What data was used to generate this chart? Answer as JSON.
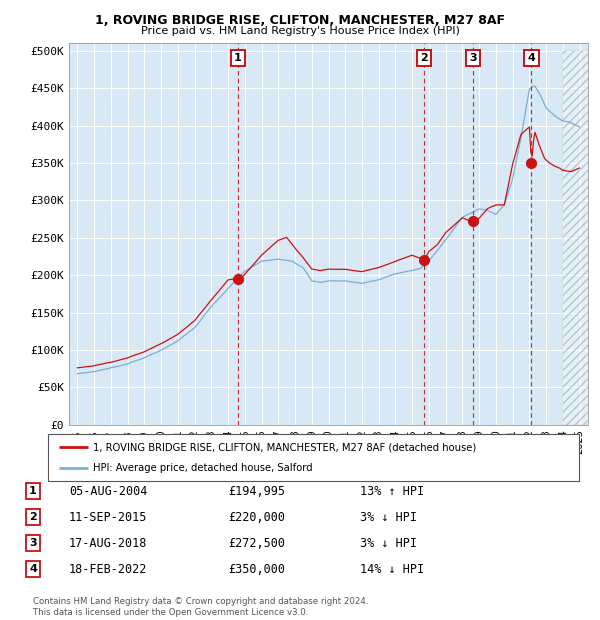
{
  "title_line1": "1, ROVING BRIDGE RISE, CLIFTON, MANCHESTER, M27 8AF",
  "title_line2": "Price paid vs. HM Land Registry's House Price Index (HPI)",
  "ylabel_ticks": [
    "£0",
    "£50K",
    "£100K",
    "£150K",
    "£200K",
    "£250K",
    "£300K",
    "£350K",
    "£400K",
    "£450K",
    "£500K"
  ],
  "ytick_values": [
    0,
    50000,
    100000,
    150000,
    200000,
    250000,
    300000,
    350000,
    400000,
    450000,
    500000
  ],
  "hpi_color": "#7aafd4",
  "price_color": "#cc1111",
  "bg_color": "#d8e8f4",
  "hatch_bg": "#c8d8e8",
  "purchase_years_float": [
    2004.586,
    2015.703,
    2018.62,
    2022.123
  ],
  "purchase_prices": [
    194995,
    220000,
    272500,
    350000
  ],
  "purchase_labels": [
    "1",
    "2",
    "3",
    "4"
  ],
  "legend_line1": "1, ROVING BRIDGE RISE, CLIFTON, MANCHESTER, M27 8AF (detached house)",
  "legend_line2": "HPI: Average price, detached house, Salford",
  "table_rows": [
    [
      "1",
      "05-AUG-2004",
      "£194,995",
      "13% ↑ HPI"
    ],
    [
      "2",
      "11-SEP-2015",
      "£220,000",
      "3% ↓ HPI"
    ],
    [
      "3",
      "17-AUG-2018",
      "£272,500",
      "3% ↓ HPI"
    ],
    [
      "4",
      "18-FEB-2022",
      "£350,000",
      "14% ↓ HPI"
    ]
  ],
  "footer_text": "Contains HM Land Registry data © Crown copyright and database right 2024.\nThis data is licensed under the Open Government Licence v3.0."
}
